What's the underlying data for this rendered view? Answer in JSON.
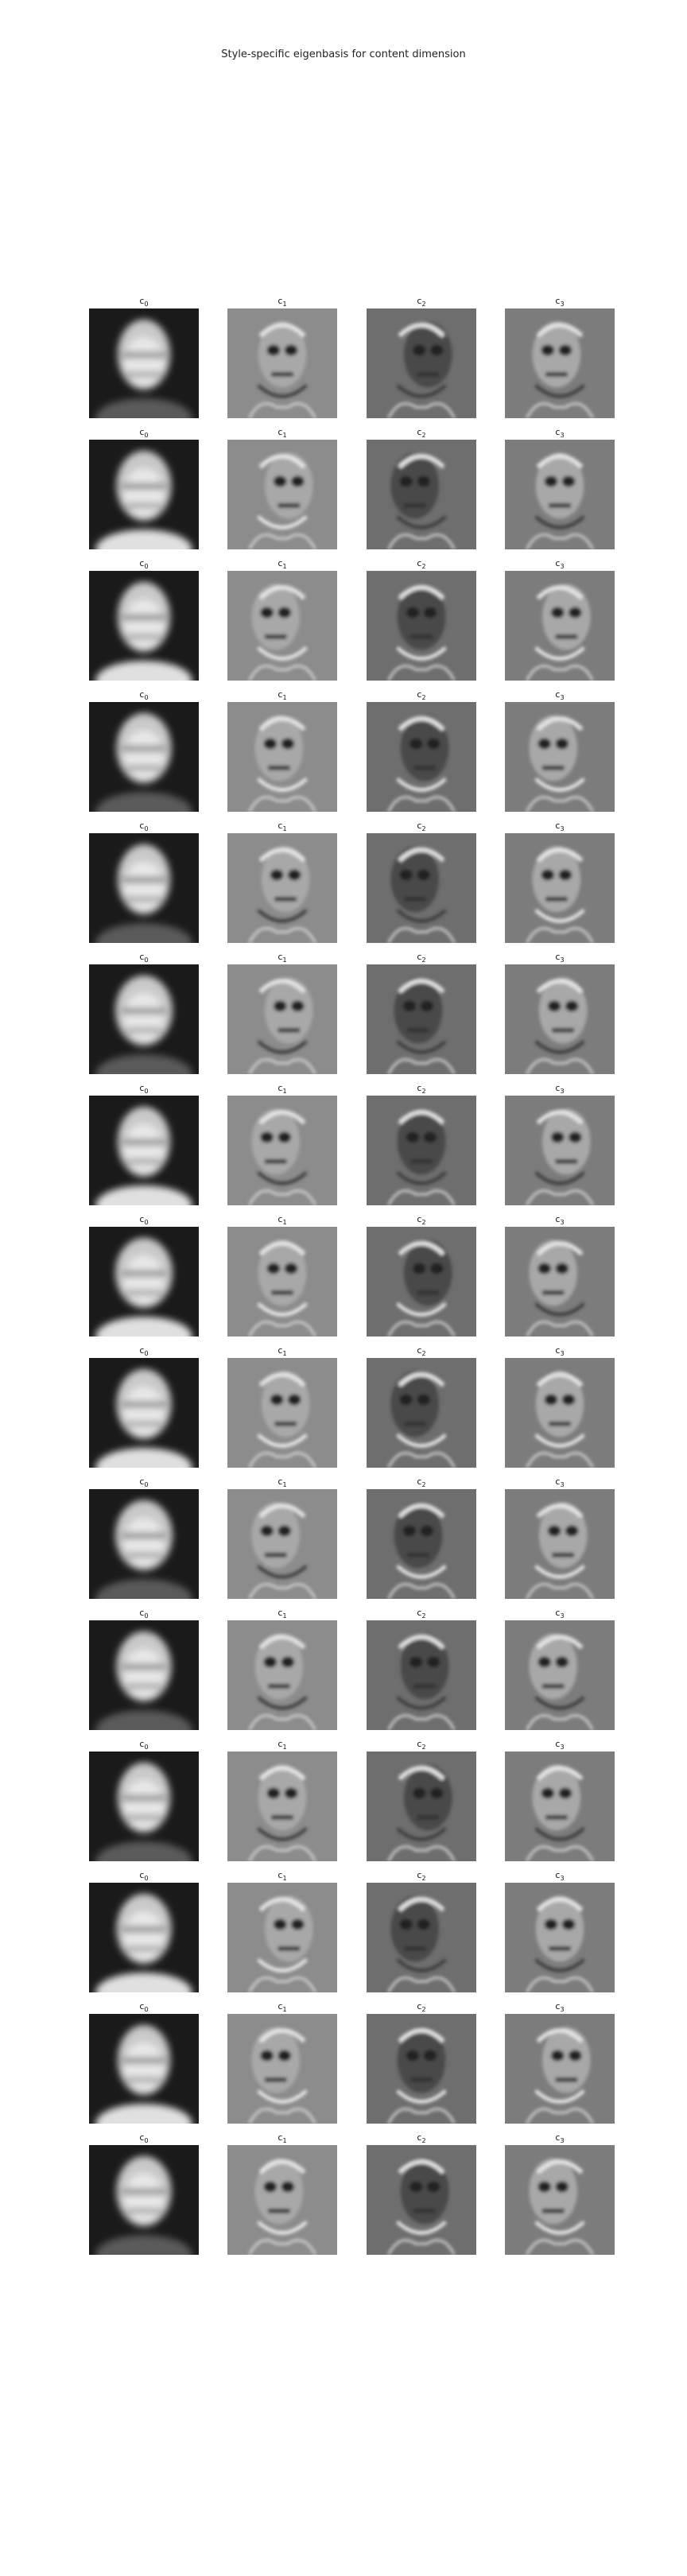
{
  "figure": {
    "title": "Style-specific eigenbasis for content dimension"
  },
  "panels": {
    "column_labels": [
      {
        "base": "c",
        "sub": "0"
      },
      {
        "base": "c",
        "sub": "1"
      },
      {
        "base": "c",
        "sub": "2"
      },
      {
        "base": "c",
        "sub": "3"
      }
    ],
    "rows": 15,
    "image_style": "grayscale eigenface"
  }
}
